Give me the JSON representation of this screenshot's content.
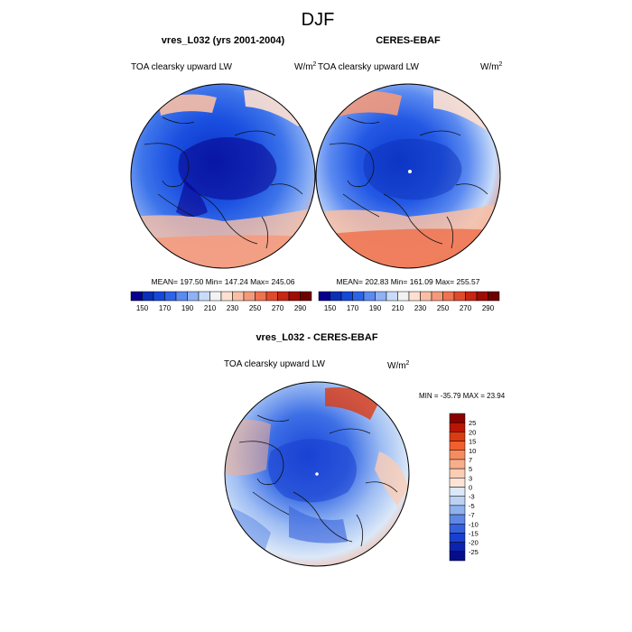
{
  "page_title": "DJF",
  "chart_data": [
    {
      "type": "heatmap",
      "projection": "north polar stereographic",
      "title": "vres_L032 (yrs 2001-2004)",
      "variable": "TOA clearsky upward LW",
      "units_base": "W/m",
      "units_exp": "2",
      "stats": "MEAN= 197.50  Min= 147.24  Max= 245.06",
      "mean": 197.5,
      "min": 147.24,
      "max": 245.06,
      "colorbar": {
        "ticks": [
          "150",
          "170",
          "190",
          "210",
          "230",
          "250",
          "270",
          "290"
        ],
        "colors": [
          "#08008c",
          "#0b2fb8",
          "#1548d6",
          "#2e63e6",
          "#5b8af0",
          "#8fb2f5",
          "#c8dcfa",
          "#f2f2f2",
          "#fde0d0",
          "#f9bfa5",
          "#f49a7c",
          "#ee7350",
          "#e04a2c",
          "#c62612",
          "#9f0c05",
          "#6e0000"
        ]
      }
    },
    {
      "type": "heatmap",
      "projection": "north polar stereographic",
      "title": "CERES-EBAF",
      "variable": "TOA clearsky upward LW",
      "units_base": "W/m",
      "units_exp": "2",
      "stats": "MEAN= 202.83  Min= 161.09  Max= 255.57",
      "mean": 202.83,
      "min": 161.09,
      "max": 255.57,
      "colorbar": {
        "ticks": [
          "150",
          "170",
          "190",
          "210",
          "230",
          "250",
          "270",
          "290"
        ],
        "colors": [
          "#08008c",
          "#0b2fb8",
          "#1548d6",
          "#2e63e6",
          "#5b8af0",
          "#8fb2f5",
          "#c8dcfa",
          "#f2f2f2",
          "#fde0d0",
          "#f9bfa5",
          "#f49a7c",
          "#ee7350",
          "#e04a2c",
          "#c62612",
          "#9f0c05",
          "#6e0000"
        ]
      }
    },
    {
      "type": "heatmap",
      "projection": "north polar stereographic",
      "title": "vres_L032 - CERES-EBAF",
      "variable": "TOA clearsky upward LW",
      "units_base": "W/m",
      "units_exp": "2",
      "stats": "MIN = -35.79 MAX =  23.94",
      "min": -35.79,
      "max": 23.94,
      "colorbar": {
        "ticks": [
          "25",
          "20",
          "15",
          "10",
          "7",
          "5",
          "3",
          "0",
          "-3",
          "-5",
          "-7",
          "-10",
          "-15",
          "-20",
          "-25"
        ],
        "colors": [
          "#8a0000",
          "#b81604",
          "#dc3a12",
          "#f0602e",
          "#f58c60",
          "#f8ae8c",
          "#fbcdb5",
          "#fbe4d6",
          "#dbe8f8",
          "#bcd2f4",
          "#8fb1ee",
          "#5f88e6",
          "#3661dc",
          "#1a3fcf",
          "#0c23b0",
          "#050e8a"
        ]
      }
    }
  ]
}
